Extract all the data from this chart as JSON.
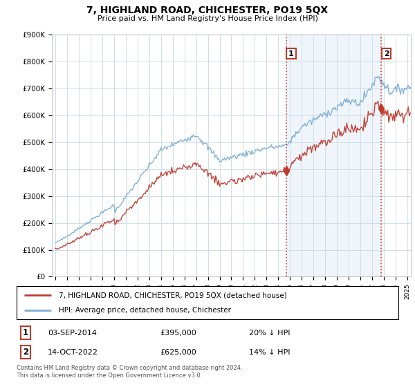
{
  "title": "7, HIGHLAND ROAD, CHICHESTER, PO19 5QX",
  "subtitle": "Price paid vs. HM Land Registry's House Price Index (HPI)",
  "ylim": [
    0,
    900000
  ],
  "yticks": [
    0,
    100000,
    200000,
    300000,
    400000,
    500000,
    600000,
    700000,
    800000,
    900000
  ],
  "ytick_labels": [
    "£0",
    "£100K",
    "£200K",
    "£300K",
    "£400K",
    "£500K",
    "£600K",
    "£700K",
    "£800K",
    "£900K"
  ],
  "hpi_color": "#7bafd4",
  "price_color": "#c0392b",
  "vline_color": "#c0392b",
  "grid_color": "#d5e3f0",
  "shade_color": "#ddeeff",
  "legend_label_price": "7, HIGHLAND ROAD, CHICHESTER, PO19 5QX (detached house)",
  "legend_label_hpi": "HPI: Average price, detached house, Chichester",
  "transaction1_date": "03-SEP-2014",
  "transaction1_price": "£395,000",
  "transaction1_hpi": "20% ↓ HPI",
  "transaction1_year": 2014.67,
  "transaction1_value": 395000,
  "transaction2_date": "14-OCT-2022",
  "transaction2_price": "£625,000",
  "transaction2_hpi": "14% ↓ HPI",
  "transaction2_year": 2022.79,
  "transaction2_value": 625000,
  "footer": "Contains HM Land Registry data © Crown copyright and database right 2024.\nThis data is licensed under the Open Government Licence v3.0.",
  "bg_color": "#ffffff"
}
